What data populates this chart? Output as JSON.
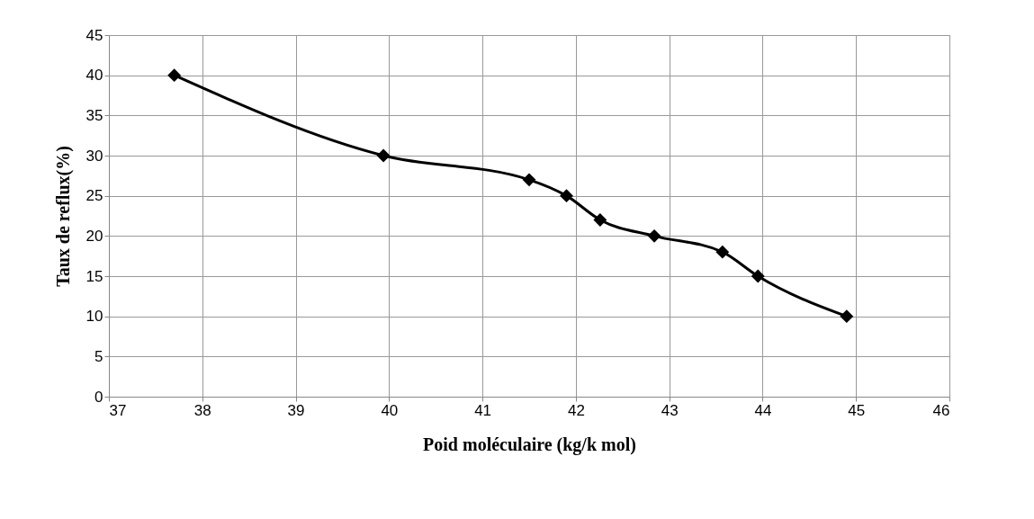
{
  "chart_data": {
    "type": "line",
    "xlabel": "Poid moléculaire (kg/k mol)",
    "ylabel": "Taux de reflux(%)",
    "x": [
      37.7,
      39.94,
      41.5,
      41.9,
      42.26,
      42.84,
      43.57,
      43.95,
      44.9
    ],
    "series": [
      {
        "color": "#000000",
        "values": [
          40,
          30,
          27,
          25,
          22,
          20,
          18,
          15,
          10
        ]
      }
    ],
    "xlim": [
      37,
      46
    ],
    "xticks": [
      37,
      38,
      39,
      40,
      41,
      42,
      43,
      44,
      45,
      46
    ],
    "ylim": [
      0,
      45
    ],
    "yticks": [
      0,
      5,
      10,
      15,
      20,
      25,
      30,
      35,
      40,
      45
    ],
    "grid": true,
    "marker": "diamond",
    "line_style": "solid"
  }
}
